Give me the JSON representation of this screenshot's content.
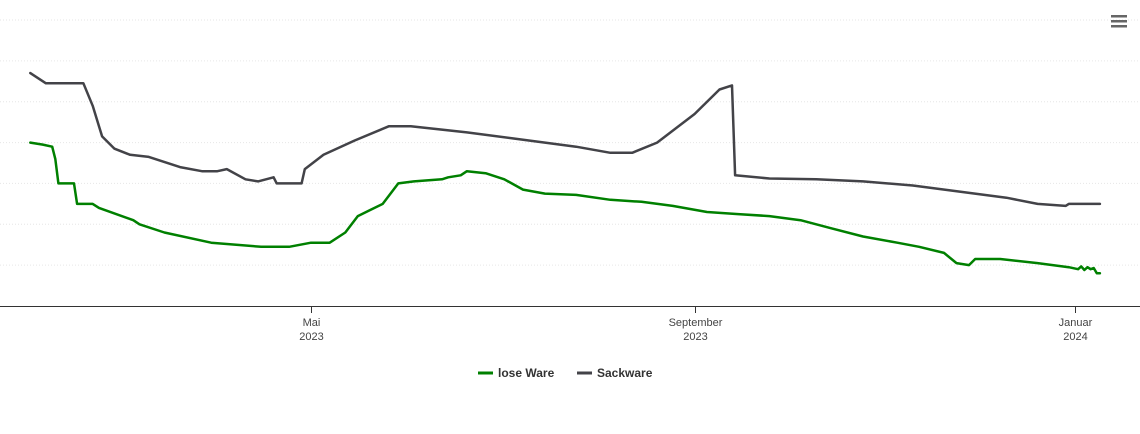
{
  "menu_icon": "hamburger-menu-icon",
  "chart_data": {
    "type": "line",
    "x_axis": {
      "ticks": [
        {
          "date": "2023-05-01",
          "line1": "Mai",
          "line2": "2023"
        },
        {
          "date": "2023-09-01",
          "line1": "September",
          "line2": "2023"
        },
        {
          "date": "2024-01-01",
          "line1": "Januar",
          "line2": "2024"
        }
      ],
      "range": [
        "2023-01-31",
        "2024-01-07"
      ]
    },
    "y_axis": {
      "range": [
        0,
        7
      ],
      "gridlines": [
        0,
        1,
        2,
        3,
        4,
        5,
        6,
        7
      ],
      "labels_shown": false
    },
    "grid": true,
    "legend": {
      "position": "bottom-center"
    },
    "series": [
      {
        "name": "lose Ware",
        "color": "#008000",
        "points": [
          [
            "2023-01-31",
            4.0
          ],
          [
            "2023-02-04",
            3.95
          ],
          [
            "2023-02-07",
            3.9
          ],
          [
            "2023-02-08",
            3.6
          ],
          [
            "2023-02-09",
            3.0
          ],
          [
            "2023-02-14",
            3.0
          ],
          [
            "2023-02-15",
            2.5
          ],
          [
            "2023-02-20",
            2.5
          ],
          [
            "2023-02-22",
            2.4
          ],
          [
            "2023-03-05",
            2.1
          ],
          [
            "2023-03-07",
            2.0
          ],
          [
            "2023-03-15",
            1.8
          ],
          [
            "2023-03-30",
            1.55
          ],
          [
            "2023-04-15",
            1.45
          ],
          [
            "2023-04-24",
            1.45
          ],
          [
            "2023-05-01",
            1.55
          ],
          [
            "2023-05-07",
            1.55
          ],
          [
            "2023-05-12",
            1.8
          ],
          [
            "2023-05-16",
            2.2
          ],
          [
            "2023-05-20",
            2.35
          ],
          [
            "2023-05-24",
            2.5
          ],
          [
            "2023-05-29",
            3.0
          ],
          [
            "2023-06-03",
            3.05
          ],
          [
            "2023-06-12",
            3.1
          ],
          [
            "2023-06-14",
            3.15
          ],
          [
            "2023-06-18",
            3.2
          ],
          [
            "2023-06-20",
            3.3
          ],
          [
            "2023-06-26",
            3.25
          ],
          [
            "2023-07-02",
            3.1
          ],
          [
            "2023-07-08",
            2.85
          ],
          [
            "2023-07-15",
            2.75
          ],
          [
            "2023-07-25",
            2.72
          ],
          [
            "2023-08-05",
            2.6
          ],
          [
            "2023-08-15",
            2.55
          ],
          [
            "2023-08-25",
            2.45
          ],
          [
            "2023-09-05",
            2.3
          ],
          [
            "2023-09-15",
            2.25
          ],
          [
            "2023-09-25",
            2.2
          ],
          [
            "2023-10-05",
            2.1
          ],
          [
            "2023-10-15",
            1.9
          ],
          [
            "2023-10-25",
            1.7
          ],
          [
            "2023-11-05",
            1.55
          ],
          [
            "2023-11-12",
            1.45
          ],
          [
            "2023-11-20",
            1.3
          ],
          [
            "2023-11-24",
            1.05
          ],
          [
            "2023-11-28",
            1.0
          ],
          [
            "2023-11-30",
            1.15
          ],
          [
            "2023-12-08",
            1.15
          ],
          [
            "2023-12-20",
            1.05
          ],
          [
            "2023-12-30",
            0.95
          ],
          [
            "2024-01-02",
            0.9
          ],
          [
            "2024-01-03",
            0.97
          ],
          [
            "2024-01-04",
            0.88
          ],
          [
            "2024-01-05",
            0.95
          ],
          [
            "2024-01-06",
            0.9
          ],
          [
            "2024-01-07",
            0.93
          ],
          [
            "2024-01-08",
            0.8
          ],
          [
            "2024-01-09",
            0.8
          ]
        ]
      },
      {
        "name": "Sackware",
        "color": "#434348",
        "points": [
          [
            "2023-01-31",
            5.7
          ],
          [
            "2023-02-05",
            5.45
          ],
          [
            "2023-02-12",
            5.45
          ],
          [
            "2023-02-17",
            5.45
          ],
          [
            "2023-02-20",
            4.9
          ],
          [
            "2023-02-23",
            4.15
          ],
          [
            "2023-02-27",
            3.85
          ],
          [
            "2023-03-04",
            3.7
          ],
          [
            "2023-03-10",
            3.65
          ],
          [
            "2023-03-20",
            3.4
          ],
          [
            "2023-03-27",
            3.3
          ],
          [
            "2023-04-01",
            3.3
          ],
          [
            "2023-04-04",
            3.35
          ],
          [
            "2023-04-10",
            3.1
          ],
          [
            "2023-04-14",
            3.05
          ],
          [
            "2023-04-19",
            3.15
          ],
          [
            "2023-04-20",
            3.0
          ],
          [
            "2023-04-28",
            3.0
          ],
          [
            "2023-04-29",
            3.35
          ],
          [
            "2023-05-05",
            3.7
          ],
          [
            "2023-05-15",
            4.05
          ],
          [
            "2023-05-26",
            4.4
          ],
          [
            "2023-06-02",
            4.4
          ],
          [
            "2023-06-20",
            4.25
          ],
          [
            "2023-07-05",
            4.1
          ],
          [
            "2023-07-25",
            3.9
          ],
          [
            "2023-08-05",
            3.75
          ],
          [
            "2023-08-12",
            3.75
          ],
          [
            "2023-08-20",
            4.0
          ],
          [
            "2023-09-01",
            4.7
          ],
          [
            "2023-09-09",
            5.3
          ],
          [
            "2023-09-13",
            5.4
          ],
          [
            "2023-09-14",
            3.2
          ],
          [
            "2023-09-25",
            3.12
          ],
          [
            "2023-10-10",
            3.1
          ],
          [
            "2023-10-25",
            3.05
          ],
          [
            "2023-11-10",
            2.95
          ],
          [
            "2023-11-25",
            2.8
          ],
          [
            "2023-12-10",
            2.65
          ],
          [
            "2023-12-20",
            2.5
          ],
          [
            "2023-12-29",
            2.45
          ],
          [
            "2023-12-30",
            2.5
          ],
          [
            "2024-01-09",
            2.5
          ]
        ]
      }
    ]
  }
}
